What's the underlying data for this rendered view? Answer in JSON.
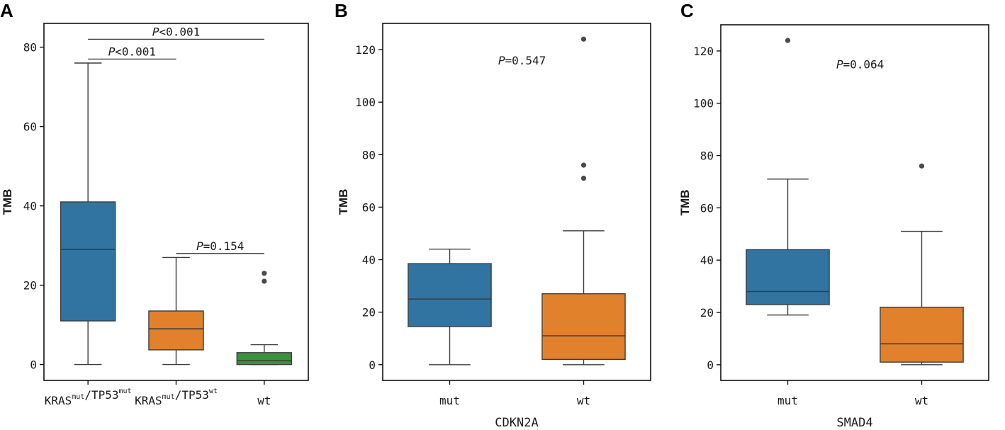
{
  "chart_data": [
    {
      "type": "box",
      "panel": "A",
      "ylabel": "TMB",
      "xlabel": "",
      "ylim": [
        -4,
        86
      ],
      "yticks": [
        0,
        20,
        40,
        60,
        80
      ],
      "categories": [
        {
          "name": "KRAS",
          "sup1": "mut",
          "mid": "/TP53",
          "sup2": "mut"
        },
        {
          "name": "KRAS",
          "sup1": "mut",
          "mid": "/TP53",
          "sup2": "wt"
        },
        {
          "name": "wt",
          "sup1": "",
          "mid": "",
          "sup2": ""
        }
      ],
      "boxes": [
        {
          "whisker_low": 0,
          "q1": 11,
          "median": 29,
          "q3": 41,
          "whisker_high": 76,
          "outliers": [],
          "color": "#3274a1"
        },
        {
          "whisker_low": 0,
          "q1": 3.7,
          "median": 9,
          "q3": 13.5,
          "whisker_high": 27,
          "outliers": [],
          "color": "#e1812c"
        },
        {
          "whisker_low": 0,
          "q1": 0,
          "median": 1,
          "q3": 3,
          "whisker_high": 5,
          "outliers": [
            21,
            23
          ],
          "color": "#3a923a"
        }
      ],
      "annotations": [
        {
          "from": 0,
          "to": 2,
          "y": 82,
          "text": "<0.001"
        },
        {
          "from": 0,
          "to": 1,
          "y": 77,
          "text": "<0.001"
        },
        {
          "from": 1,
          "to": 2,
          "y": 28,
          "text": "=0.154"
        }
      ]
    },
    {
      "type": "box",
      "panel": "B",
      "ylabel": "TMB",
      "xlabel": "CDKN2A",
      "ylim": [
        -6,
        130
      ],
      "yticks": [
        0,
        20,
        40,
        60,
        80,
        100,
        120
      ],
      "categories": [
        {
          "name": "mut",
          "sup1": "",
          "mid": "",
          "sup2": ""
        },
        {
          "name": "wt",
          "sup1": "",
          "mid": "",
          "sup2": ""
        }
      ],
      "boxes": [
        {
          "whisker_low": 0,
          "q1": 14.5,
          "median": 25,
          "q3": 38.5,
          "whisker_high": 44,
          "outliers": [],
          "color": "#3274a1"
        },
        {
          "whisker_low": 0,
          "q1": 2,
          "median": 11,
          "q3": 27,
          "whisker_high": 51,
          "outliers": [
            71,
            76,
            124
          ],
          "color": "#e1812c"
        }
      ],
      "annotations": [
        {
          "text": "=0.547",
          "y": 116,
          "at": 0.52
        }
      ]
    },
    {
      "type": "box",
      "panel": "C",
      "ylabel": "TMB",
      "xlabel": "SMAD4",
      "ylim": [
        -6,
        130
      ],
      "yticks": [
        0,
        20,
        40,
        60,
        80,
        100,
        120
      ],
      "categories": [
        {
          "name": "mut",
          "sup1": "",
          "mid": "",
          "sup2": ""
        },
        {
          "name": "wt",
          "sup1": "",
          "mid": "",
          "sup2": ""
        }
      ],
      "boxes": [
        {
          "whisker_low": 19,
          "q1": 23,
          "median": 28,
          "q3": 44,
          "whisker_high": 71,
          "outliers": [
            124
          ],
          "color": "#3274a1"
        },
        {
          "whisker_low": 0,
          "q1": 1,
          "median": 8,
          "q3": 22,
          "whisker_high": 51,
          "outliers": [
            76
          ],
          "color": "#e1812c"
        }
      ],
      "annotations": [
        {
          "text": "=0.064",
          "y": 115,
          "at": 0.52
        }
      ]
    }
  ],
  "annotation_prefix": "P"
}
